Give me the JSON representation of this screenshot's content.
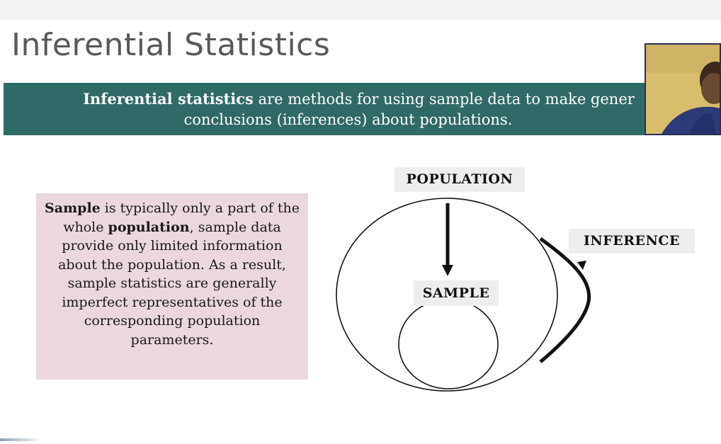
{
  "slide": {
    "title": "Inferential Statistics",
    "banner": {
      "bold_term": "Inferential statistics",
      "line1_rest": " are methods for using sample data to make gener",
      "line2": "conclusions (inferences) about populations."
    },
    "sample_box": {
      "part1_bold": "Sample",
      "part2": " is typically only a part of the whole ",
      "part3_bold": "population",
      "part4": ", sample data provide only limited information about the population. As a result, sample statistics are generally imperfect representatives of the corresponding population parameters."
    },
    "diagram": {
      "population_label": "POPULATION",
      "sample_label": "SAMPLE",
      "inference_label": "INFERENCE"
    }
  },
  "colors": {
    "banner_bg": "#2f6b66",
    "sample_box_bg": "#ead8dd",
    "title_color": "#595959",
    "label_bg": "#eeeeee"
  },
  "icons": {
    "webcam": "presenter-webcam-feed",
    "arrow_down": "arrow-down-icon",
    "inference_arc": "curved-arrow-icon"
  }
}
